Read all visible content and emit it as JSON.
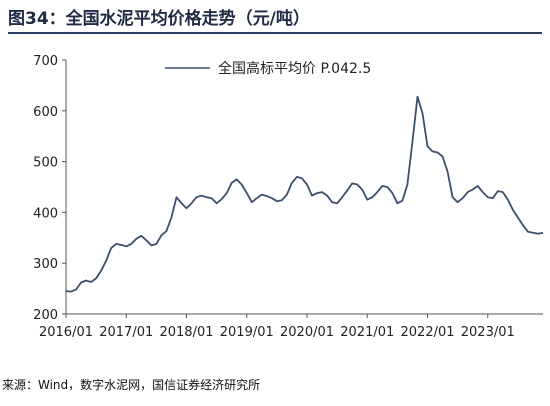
{
  "figure": {
    "title": "图34：全国水泥平均价格走势（元/吨）",
    "source": "来源：Wind，数字水泥网，国信证券经济研究所"
  },
  "chart_data": {
    "type": "line",
    "ylim": [
      200,
      700
    ],
    "yticks": [
      200,
      300,
      400,
      500,
      600,
      700
    ],
    "xticks": [
      "2016/01",
      "2017/01",
      "2018/01",
      "2019/01",
      "2020/01",
      "2021/01",
      "2022/01",
      "2023/01"
    ],
    "xrange": [
      "2016/01",
      "2023/12"
    ],
    "grid": false,
    "legend": "top-center",
    "line_color": "#3d4f6b",
    "series": [
      {
        "name": "全国高标平均价  P.042.5",
        "x": [
          "2016/01",
          "2016/02",
          "2016/03",
          "2016/04",
          "2016/05",
          "2016/06",
          "2016/07",
          "2016/08",
          "2016/09",
          "2016/10",
          "2016/11",
          "2016/12",
          "2017/01",
          "2017/02",
          "2017/03",
          "2017/04",
          "2017/05",
          "2017/06",
          "2017/07",
          "2017/08",
          "2017/09",
          "2017/10",
          "2017/11",
          "2017/12",
          "2018/01",
          "2018/02",
          "2018/03",
          "2018/04",
          "2018/05",
          "2018/06",
          "2018/07",
          "2018/08",
          "2018/09",
          "2018/10",
          "2018/11",
          "2018/12",
          "2019/01",
          "2019/02",
          "2019/03",
          "2019/04",
          "2019/05",
          "2019/06",
          "2019/07",
          "2019/08",
          "2019/09",
          "2019/10",
          "2019/11",
          "2019/12",
          "2020/01",
          "2020/02",
          "2020/03",
          "2020/04",
          "2020/05",
          "2020/06",
          "2020/07",
          "2020/08",
          "2020/09",
          "2020/10",
          "2020/11",
          "2020/12",
          "2021/01",
          "2021/02",
          "2021/03",
          "2021/04",
          "2021/05",
          "2021/06",
          "2021/07",
          "2021/08",
          "2021/09",
          "2021/10",
          "2021/11",
          "2021/12",
          "2022/01",
          "2022/02",
          "2022/03",
          "2022/04",
          "2022/05",
          "2022/06",
          "2022/07",
          "2022/08",
          "2022/09",
          "2022/10",
          "2022/11",
          "2022/12",
          "2023/01",
          "2023/02",
          "2023/03",
          "2023/04",
          "2023/05",
          "2023/06",
          "2023/07",
          "2023/08",
          "2023/09",
          "2023/10",
          "2023/11",
          "2023/12"
        ],
        "values": [
          245,
          244,
          248,
          262,
          266,
          263,
          270,
          285,
          305,
          330,
          338,
          336,
          333,
          338,
          348,
          354,
          345,
          335,
          338,
          355,
          363,
          390,
          430,
          418,
          408,
          418,
          430,
          433,
          430,
          428,
          418,
          426,
          438,
          458,
          465,
          455,
          438,
          420,
          428,
          435,
          432,
          428,
          422,
          424,
          435,
          458,
          470,
          467,
          455,
          433,
          438,
          440,
          433,
          420,
          418,
          430,
          443,
          457,
          455,
          445,
          425,
          430,
          440,
          452,
          450,
          438,
          418,
          423,
          455,
          540,
          628,
          595,
          530,
          520,
          518,
          510,
          480,
          430,
          420,
          428,
          440,
          445,
          452,
          440,
          430,
          428,
          442,
          440,
          425,
          405,
          390,
          375,
          362,
          360,
          358,
          360
        ]
      }
    ]
  }
}
